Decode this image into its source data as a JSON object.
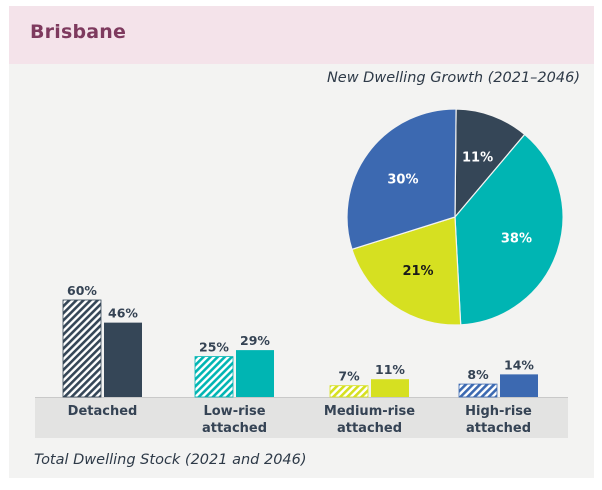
{
  "header": {
    "title": "Brisbane"
  },
  "colors": {
    "header_bg": "#f4e3ea",
    "title_color": "#7e3a5e",
    "detached": "#354657",
    "low_rise": "#00b5b3",
    "medium_rise": "#d6e021",
    "high_rise": "#3c69b1",
    "text": "#354354"
  },
  "chart_data": [
    {
      "type": "pie",
      "title": "New Dwelling Growth (2021–2046)",
      "slices": [
        {
          "name": "Detached",
          "value": 11,
          "label": "11%",
          "color": "#354657",
          "label_color": "#ffffff"
        },
        {
          "name": "Low-rise attached",
          "value": 38,
          "label": "38%",
          "color": "#00b5b3",
          "label_color": "#ffffff"
        },
        {
          "name": "Medium-rise attached",
          "value": 21,
          "label": "21%",
          "color": "#d6e021",
          "label_color": "#1a1a1a"
        },
        {
          "name": "High-rise attached",
          "value": 30,
          "label": "30%",
          "color": "#3c69b1",
          "label_color": "#ffffff"
        }
      ],
      "start_direction": "top",
      "order": "clockwise"
    },
    {
      "type": "bar",
      "title": "Total Dwelling Stock (2021 and 2046)",
      "categories": [
        "Detached",
        "Low-rise attached",
        "Medium-rise attached",
        "High-rise attached"
      ],
      "category_lines": [
        [
          "Detached"
        ],
        [
          "Low-rise",
          "attached"
        ],
        [
          "Medium-rise",
          "attached"
        ],
        [
          "High-rise",
          "attached"
        ]
      ],
      "series": [
        {
          "name": "2021",
          "style": "hatched",
          "values": [
            60,
            25,
            7,
            8
          ],
          "labels": [
            "60%",
            "25%",
            "7%",
            "8%"
          ]
        },
        {
          "name": "2046",
          "style": "solid",
          "values": [
            46,
            29,
            11,
            14
          ],
          "labels": [
            "46%",
            "29%",
            "11%",
            "14%"
          ]
        }
      ],
      "colors": [
        "#354657",
        "#00b5b3",
        "#d6e021",
        "#3c69b1"
      ],
      "unit": "%",
      "ylim": [
        0,
        60
      ],
      "grid": false,
      "legend": "none"
    }
  ]
}
